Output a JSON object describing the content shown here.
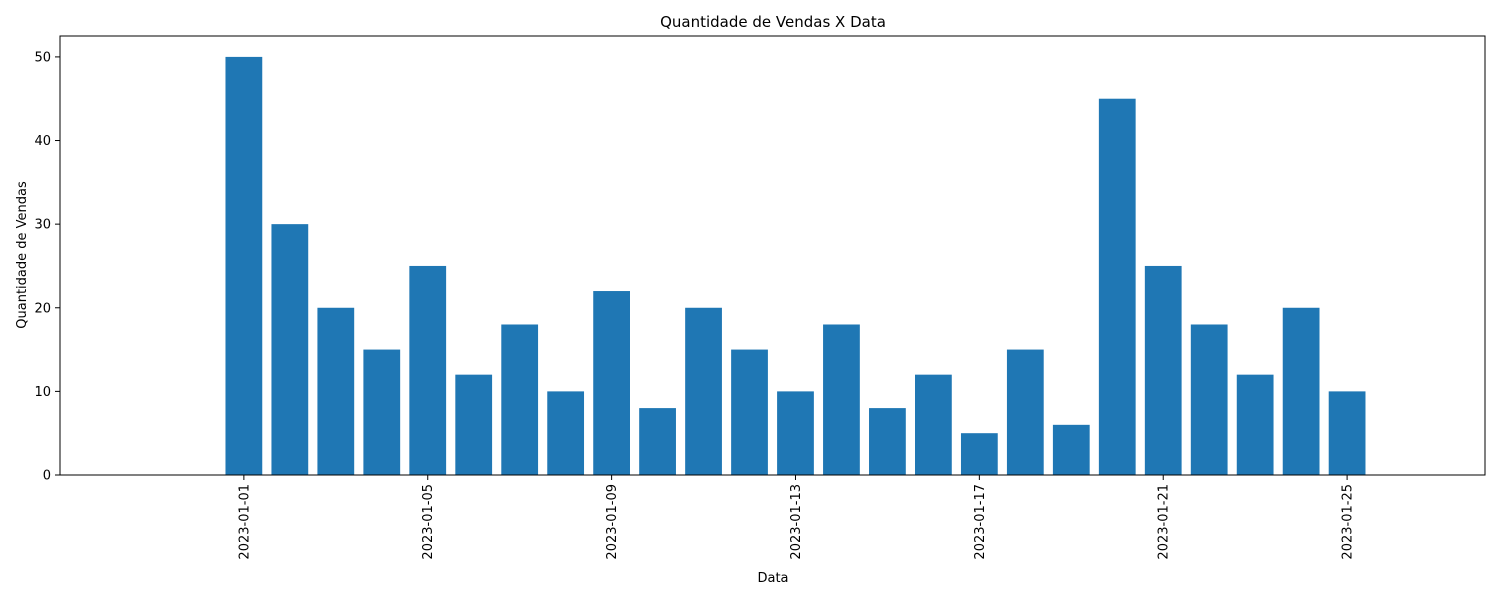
{
  "chart_data": {
    "type": "bar",
    "title": "Quantidade de Vendas X Data",
    "xlabel": "Data",
    "ylabel": "Quantidade de Vendas",
    "x": [
      "2023-01-01",
      "2023-01-02",
      "2023-01-03",
      "2023-01-04",
      "2023-01-05",
      "2023-01-06",
      "2023-01-07",
      "2023-01-08",
      "2023-01-09",
      "2023-01-10",
      "2023-01-11",
      "2023-01-12",
      "2023-01-13",
      "2023-01-14",
      "2023-01-15",
      "2023-01-16",
      "2023-01-17",
      "2023-01-18",
      "2023-01-19",
      "2023-01-20",
      "2023-01-21",
      "2023-01-22",
      "2023-01-23",
      "2023-01-24",
      "2023-01-25"
    ],
    "values": [
      50,
      30,
      20,
      15,
      25,
      12,
      18,
      10,
      22,
      8,
      20,
      15,
      10,
      18,
      8,
      12,
      5,
      15,
      6,
      45,
      25,
      18,
      12,
      20,
      10
    ],
    "x_ticks": [
      "2023-01-01",
      "2023-01-05",
      "2023-01-09",
      "2023-01-13",
      "2023-01-17",
      "2023-01-21",
      "2023-01-25"
    ],
    "y_ticks": [
      0,
      10,
      20,
      30,
      40,
      50
    ],
    "ylim": [
      0,
      52.5
    ],
    "xlim": [
      "2022-12-28",
      "2023-01-28"
    ],
    "grid": false,
    "bar_color": "#1f77b4"
  }
}
